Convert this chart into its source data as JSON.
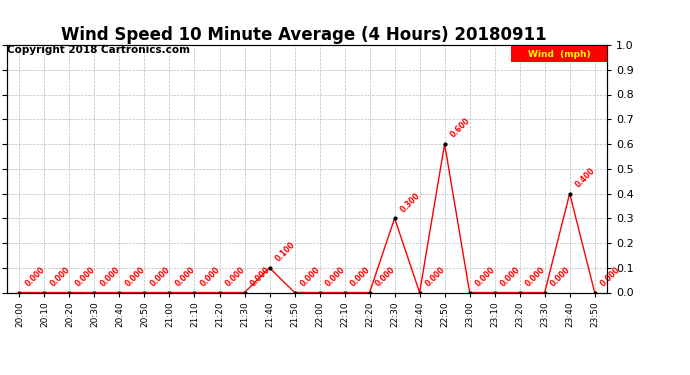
{
  "title": "Wind Speed 10 Minute Average (4 Hours) 20180911",
  "copyright": "Copyright 2018 Cartronics.com",
  "legend_label": "Wind  (mph)",
  "x_labels": [
    "20:00",
    "20:10",
    "20:20",
    "20:30",
    "20:40",
    "20:50",
    "21:00",
    "21:10",
    "21:20",
    "21:30",
    "21:40",
    "21:50",
    "22:00",
    "22:10",
    "22:20",
    "22:30",
    "22:40",
    "22:50",
    "23:00",
    "23:10",
    "23:20",
    "23:30",
    "23:40",
    "23:50"
  ],
  "y_values": [
    0.0,
    0.0,
    0.0,
    0.0,
    0.0,
    0.0,
    0.0,
    0.0,
    0.0,
    0.0,
    0.1,
    0.0,
    0.0,
    0.0,
    0.0,
    0.3,
    0.0,
    0.6,
    0.0,
    0.0,
    0.0,
    0.0,
    0.4,
    0.0
  ],
  "line_color": "#ff0000",
  "marker_color": "#000000",
  "label_color": "#ff0000",
  "ylim": [
    0.0,
    1.0
  ],
  "yticks": [
    0.0,
    0.1,
    0.2,
    0.3,
    0.4,
    0.5,
    0.6,
    0.7,
    0.8,
    0.9,
    1.0
  ],
  "bg_color": "#ffffff",
  "grid_color": "#bbbbbb",
  "title_fontsize": 12,
  "copyright_fontsize": 7.5,
  "legend_bg": "#ff0000",
  "legend_text_color": "#ffff00"
}
